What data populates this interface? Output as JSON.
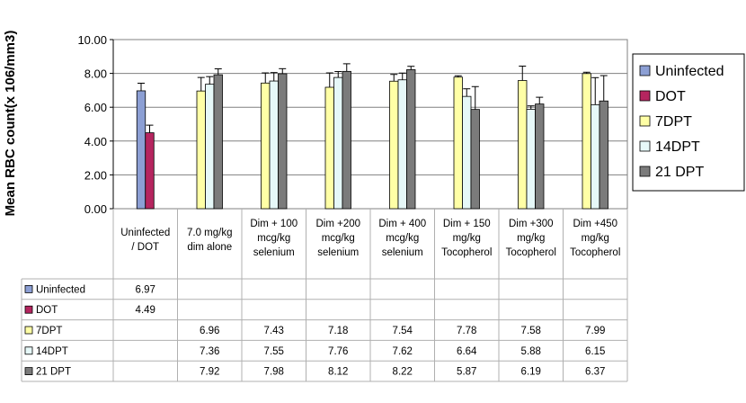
{
  "chart_data": {
    "type": "bar",
    "ylabel": "Mean RBC count(x 106/mm3)",
    "ylim": [
      0,
      10
    ],
    "yticks": [
      "0.00",
      "2.00",
      "4.00",
      "6.00",
      "8.00",
      "10.00"
    ],
    "grid": true,
    "legend_position": "right",
    "categories": [
      [
        "Uninfected",
        "/ DOT"
      ],
      [
        "7.0 mg/kg",
        "dim alone"
      ],
      [
        "Dim + 100",
        "mcg/kg",
        "selenium"
      ],
      [
        "Dim +200",
        "mcg/kg",
        "selenium"
      ],
      [
        "Dim + 400",
        "mcg/kg",
        "selenium"
      ],
      [
        "Dim + 150",
        "mg/kg",
        "Tocopherol"
      ],
      [
        "Dim +300",
        "mg/kg",
        "Tocopherol"
      ],
      [
        "Dim +450",
        "mg/kg",
        "Tocopherol"
      ]
    ],
    "series": [
      {
        "name": "Uninfected",
        "color": "#8c9fd4",
        "values": [
          6.97,
          null,
          null,
          null,
          null,
          null,
          null,
          null
        ],
        "errors": [
          0.45,
          null,
          null,
          null,
          null,
          null,
          null,
          null
        ]
      },
      {
        "name": "DOT",
        "color": "#b5255f",
        "values": [
          4.49,
          null,
          null,
          null,
          null,
          null,
          null,
          null
        ],
        "errors": [
          0.45,
          null,
          null,
          null,
          null,
          null,
          null,
          null
        ]
      },
      {
        "name": "7DPT",
        "color": "#ffffa6",
        "values": [
          null,
          6.96,
          7.43,
          7.18,
          7.54,
          7.78,
          7.58,
          7.99
        ],
        "errors": [
          null,
          0.8,
          0.6,
          0.85,
          0.4,
          0.08,
          0.85,
          0.08
        ]
      },
      {
        "name": "14DPT",
        "color": "#e6f8f8",
        "values": [
          null,
          7.36,
          7.55,
          7.76,
          7.62,
          6.64,
          5.88,
          6.15
        ],
        "errors": [
          null,
          0.45,
          0.5,
          0.35,
          0.4,
          0.45,
          0.2,
          1.6
        ]
      },
      {
        "name": "21 DPT",
        "color": "#7b7b7b",
        "values": [
          null,
          7.92,
          7.98,
          8.12,
          8.22,
          5.87,
          6.19,
          6.37
        ],
        "errors": [
          null,
          0.35,
          0.3,
          0.45,
          0.2,
          1.35,
          0.4,
          1.5
        ]
      }
    ],
    "table": {
      "rows": [
        {
          "label": "Uninfected",
          "cells": [
            "6.97",
            "",
            "",
            "",
            "",
            "",
            "",
            ""
          ]
        },
        {
          "label": "DOT",
          "cells": [
            "4.49",
            "",
            "",
            "",
            "",
            "",
            "",
            ""
          ]
        },
        {
          "label": "7DPT",
          "cells": [
            "",
            "6.96",
            "7.43",
            "7.18",
            "7.54",
            "7.78",
            "7.58",
            "7.99"
          ]
        },
        {
          "label": "14DPT",
          "cells": [
            "",
            "7.36",
            "7.55",
            "7.76",
            "7.62",
            "6.64",
            "5.88",
            "6.15"
          ]
        },
        {
          "label": "21 DPT",
          "cells": [
            "",
            "7.92",
            "7.98",
            "8.12",
            "8.22",
            "5.87",
            "6.19",
            "6.37"
          ]
        }
      ]
    }
  }
}
